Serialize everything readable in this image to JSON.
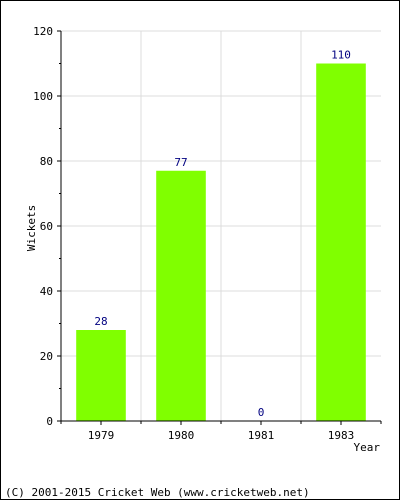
{
  "chart_data": {
    "type": "bar",
    "categories": [
      "1979",
      "1980",
      "1981",
      "1983"
    ],
    "values": [
      28,
      77,
      0,
      110
    ],
    "data_labels": [
      "28",
      "77",
      "0",
      "110"
    ],
    "xlabel": "Year",
    "ylabel": "Wickets",
    "ylim": [
      0,
      120
    ],
    "y_ticks": [
      0,
      20,
      40,
      60,
      80,
      100,
      120
    ],
    "y_tick_labels": [
      "0",
      "20",
      "40",
      "60",
      "80",
      "100",
      "120"
    ],
    "grid": true,
    "legend": "none",
    "colors": {
      "bar": "#80ff00",
      "data_label": "#000080",
      "grid": "#dcdcdc",
      "axis": "#000000"
    }
  },
  "footer": {
    "copyright": "(C) 2001-2015 Cricket Web (www.cricketweb.net)"
  }
}
